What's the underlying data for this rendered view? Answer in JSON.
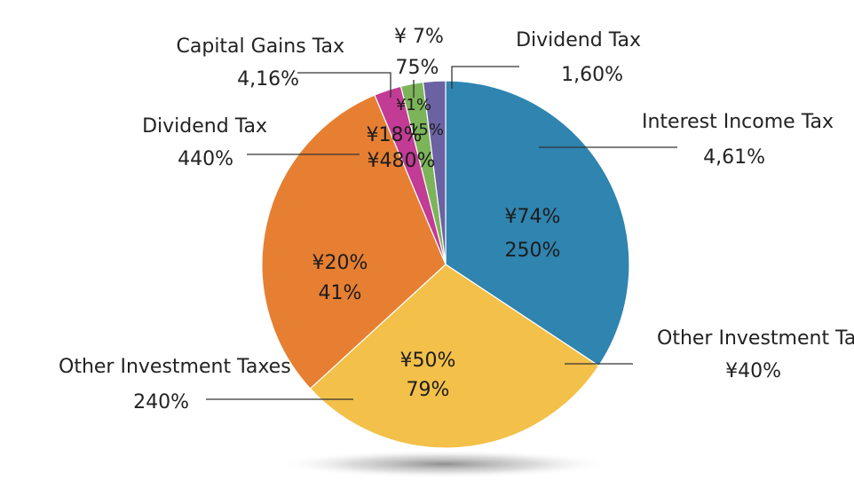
{
  "chart_data": {
    "type": "pie",
    "title": "",
    "slices": [
      {
        "name": "Interest Income Tax",
        "value": 31.5,
        "color": "#2f84b0",
        "inner": [
          "¥74%",
          "250%"
        ],
        "outer": [
          "Interest Income Tax",
          "4,61%"
        ]
      },
      {
        "name": "Other Investment Taxes (right)",
        "value": 26.5,
        "color": "#f3c049",
        "inner": [
          "¥50%",
          "79%"
        ],
        "outer": [
          "Other Investment Taxe",
          "¥40%"
        ]
      },
      {
        "name": "Other Investment Taxes",
        "value": 28.0,
        "color": "#e67f32",
        "inner": [
          "¥20%",
          "41%"
        ],
        "outer": [
          "Other Investment Taxes",
          "240%"
        ]
      },
      {
        "name": "Dividend Tax (left)",
        "value": 2.2,
        "color": "#c23b95",
        "inner": [
          "¥18%",
          "¥480%"
        ],
        "outer": [
          "Dividend Tax",
          "440%"
        ]
      },
      {
        "name": "Capital Gains Tax",
        "value": 1.8,
        "color": "#7cb45a",
        "inner": [
          "¥1%",
          "15%"
        ],
        "outer": [
          "Capital Gains Tax",
          "4,16%",
          "¥ 7%",
          "75%"
        ]
      },
      {
        "name": "Dividend Tax",
        "value": 1.8,
        "color": "#6b62a4",
        "inner": [],
        "outer": [
          "Dividend Tax",
          "1,60%"
        ]
      }
    ]
  }
}
